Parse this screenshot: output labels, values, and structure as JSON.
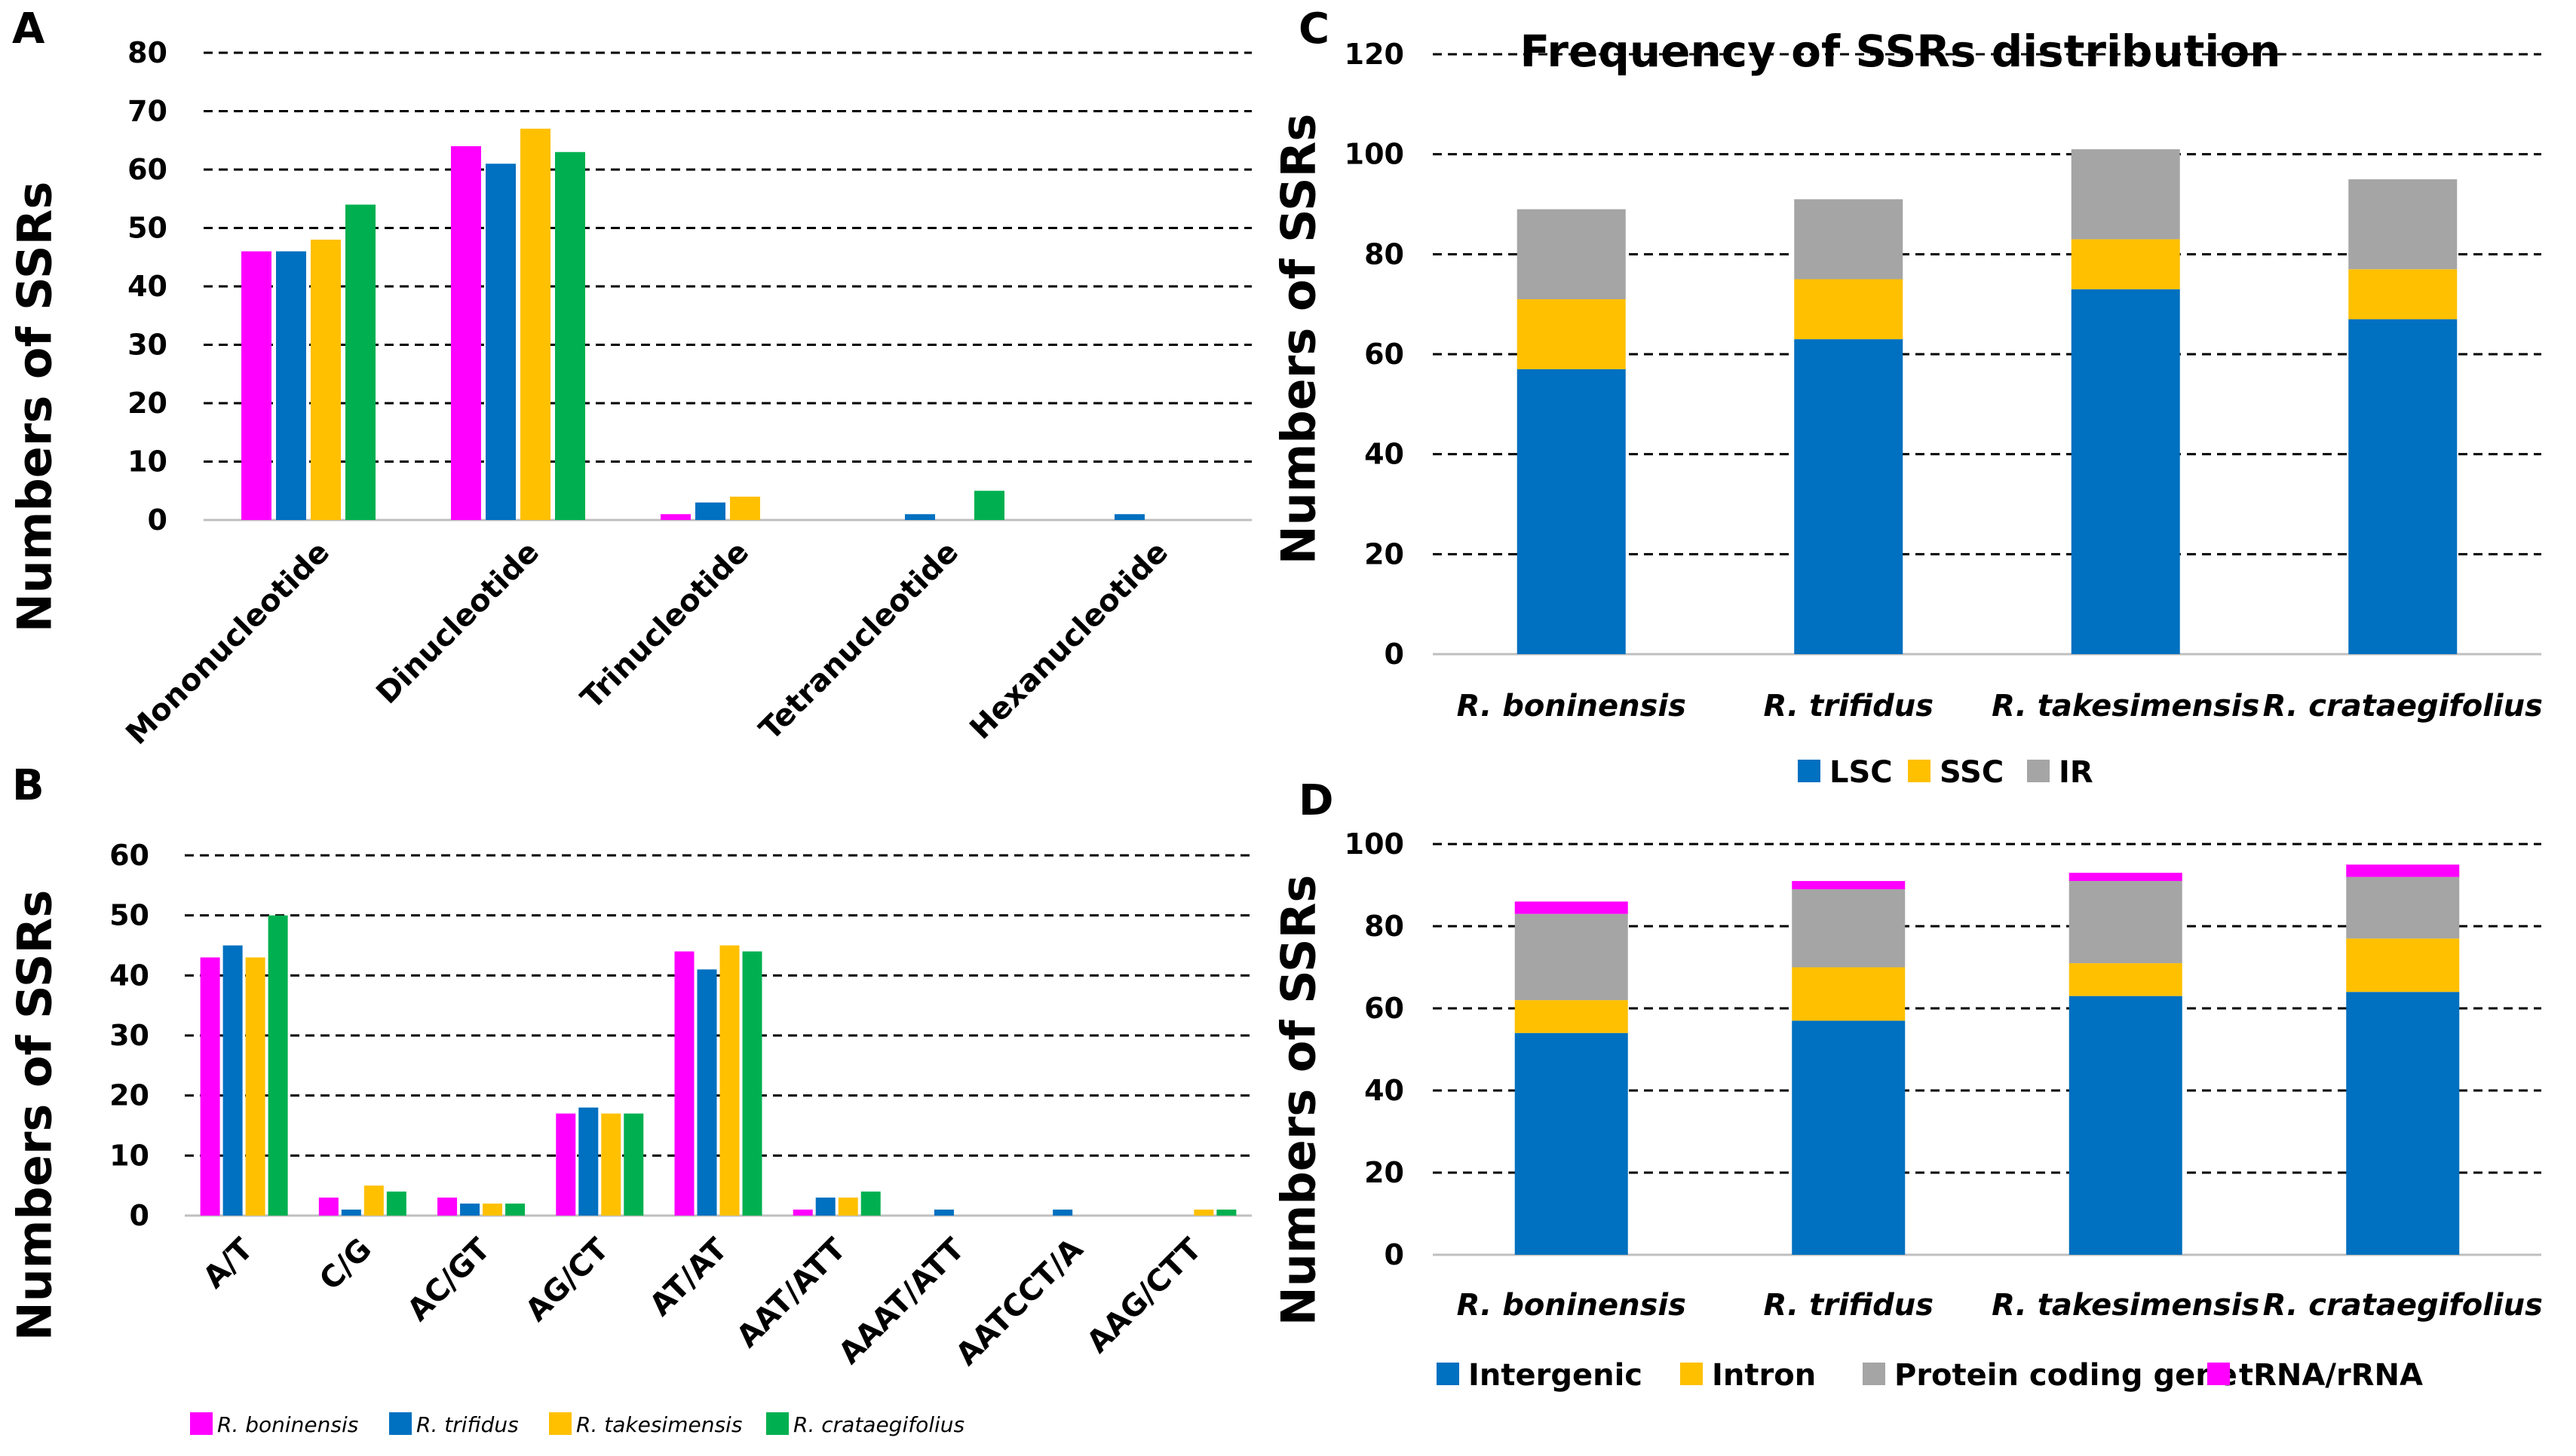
{
  "panels": {
    "a": "A",
    "b": "B",
    "c": "C",
    "d": "D"
  },
  "chart_data": [
    {
      "id": "A",
      "type": "bar",
      "ylabel": "Numbers of SSRs",
      "ylim": [
        0,
        80
      ],
      "yticks": [
        0,
        10,
        20,
        30,
        40,
        50,
        60,
        70,
        80
      ],
      "grid": true,
      "categories": [
        "Mononucleotide",
        "Dinucleotide",
        "Trinucleotide",
        "Tetranucleotide",
        "Hexanucleotide"
      ],
      "series": [
        {
          "name": "R. boninensis",
          "color": "#FF00FF",
          "values": [
            46,
            64,
            1,
            0,
            0
          ]
        },
        {
          "name": "R. trifidus",
          "color": "#0070C0",
          "values": [
            46,
            61,
            3,
            1,
            1
          ]
        },
        {
          "name": "R. takesimensis",
          "color": "#FFC000",
          "values": [
            48,
            67,
            4,
            0,
            0
          ]
        },
        {
          "name": "R. crataegifolius",
          "color": "#00B050",
          "values": [
            54,
            63,
            0,
            5,
            0
          ]
        }
      ]
    },
    {
      "id": "B",
      "type": "bar",
      "ylabel": "Numbers of SSRs",
      "ylim": [
        0,
        60
      ],
      "yticks": [
        0,
        10,
        20,
        30,
        40,
        50,
        60
      ],
      "grid": true,
      "categories": [
        "A/T",
        "C/G",
        "AC/GT",
        "AG/CT",
        "AT/AT",
        "AAT/ATT",
        "AAAT/ATT",
        "AATCCT/A",
        "AAG/CTT"
      ],
      "series": [
        {
          "name": "R. boninensis",
          "color": "#FF00FF",
          "values": [
            43,
            3,
            3,
            17,
            44,
            1,
            0,
            0,
            0
          ]
        },
        {
          "name": "R. trifidus",
          "color": "#0070C0",
          "values": [
            45,
            1,
            2,
            18,
            41,
            3,
            1,
            1,
            0
          ]
        },
        {
          "name": "R. takesimensis",
          "color": "#FFC000",
          "values": [
            43,
            5,
            2,
            17,
            45,
            3,
            0,
            0,
            1
          ]
        },
        {
          "name": "R. crataegifolius",
          "color": "#00B050",
          "values": [
            50,
            4,
            2,
            17,
            44,
            4,
            0,
            0,
            1
          ]
        }
      ],
      "legend": [
        "R. boninensis",
        "R. trifidus",
        "R. takesimensis",
        "R. crataegifolius"
      ],
      "legend_position": "bottom"
    },
    {
      "id": "C",
      "type": "bar",
      "stacked": true,
      "title": "Frequency of SSRs distribution",
      "ylabel": "Numbers of SSRs",
      "ylim": [
        0,
        120
      ],
      "yticks": [
        0,
        20,
        40,
        60,
        80,
        100,
        120
      ],
      "grid": true,
      "categories": [
        "R. boninensis",
        "R. trifidus",
        "R. takesimensis",
        "R. crataegifolius"
      ],
      "series": [
        {
          "name": "LSC",
          "color": "#0070C0",
          "values": [
            57,
            63,
            73,
            67
          ]
        },
        {
          "name": "SSC",
          "color": "#FFC000",
          "values": [
            14,
            12,
            10,
            10
          ]
        },
        {
          "name": "IR",
          "color": "#A5A5A5",
          "values": [
            18,
            16,
            18,
            18
          ]
        }
      ],
      "legend": [
        "LSC",
        "SSC",
        "IR"
      ],
      "legend_position": "bottom"
    },
    {
      "id": "D",
      "type": "bar",
      "stacked": true,
      "ylabel": "Numbers of SSRs",
      "ylim": [
        0,
        100
      ],
      "yticks": [
        0,
        20,
        40,
        60,
        80,
        100
      ],
      "grid": true,
      "categories": [
        "R. boninensis",
        "R. trifidus",
        "R. takesimensis",
        "R. crataegifolius"
      ],
      "series": [
        {
          "name": "Intergenic",
          "color": "#0070C0",
          "values": [
            54,
            57,
            63,
            64
          ]
        },
        {
          "name": "Intron",
          "color": "#FFC000",
          "values": [
            8,
            13,
            8,
            13
          ]
        },
        {
          "name": "Protein coding gene",
          "color": "#A5A5A5",
          "values": [
            21,
            19,
            20,
            15
          ]
        },
        {
          "name": "tRNA/rRNA",
          "color": "#FF00FF",
          "values": [
            3,
            2,
            2,
            3
          ]
        }
      ],
      "legend": [
        "Intergenic",
        "Intron",
        "Protein coding gene",
        "tRNA/rRNA"
      ],
      "legend_position": "bottom"
    }
  ]
}
